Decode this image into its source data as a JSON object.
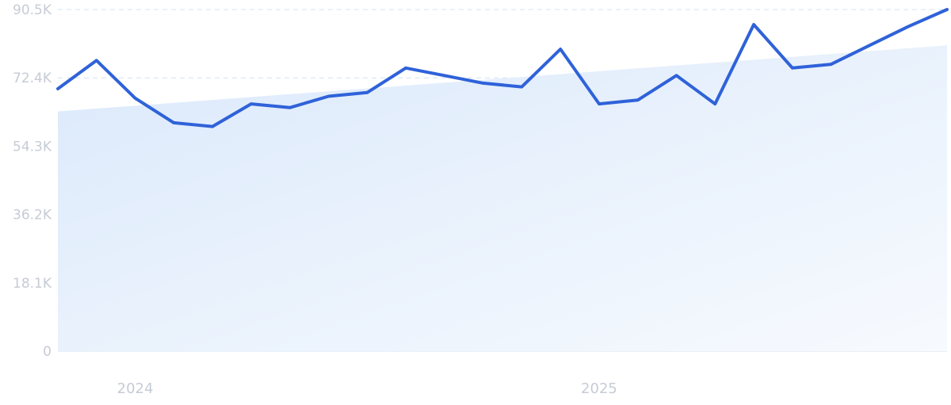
{
  "chart_data": {
    "type": "line",
    "y_ticks": [
      "0",
      "18.1K",
      "36.2K",
      "54.3K",
      "72.4K",
      "90.5K"
    ],
    "y_tick_values": [
      0,
      18100,
      36200,
      54300,
      72400,
      90500
    ],
    "ylim": [
      0,
      90500
    ],
    "x_labels": [
      {
        "label": "2024",
        "index": 2
      },
      {
        "label": "2025",
        "index": 14
      }
    ],
    "series": [
      {
        "values": [
          69500,
          77000,
          67000,
          60500,
          59500,
          65500,
          64500,
          67500,
          68500,
          75000,
          73000,
          71000,
          70000,
          80000,
          65500,
          66500,
          73000,
          65500,
          86500,
          75000,
          76000,
          81000,
          86000,
          90500
        ]
      }
    ],
    "trend": {
      "start": 63500,
      "end": 81000
    },
    "grid": true,
    "colors": {
      "line": "#2f62d9",
      "area_start": "#dbe9fb",
      "area_end": "#f7fafe",
      "grid": "#cfe3f1",
      "labels": "#c6cbd6"
    }
  }
}
